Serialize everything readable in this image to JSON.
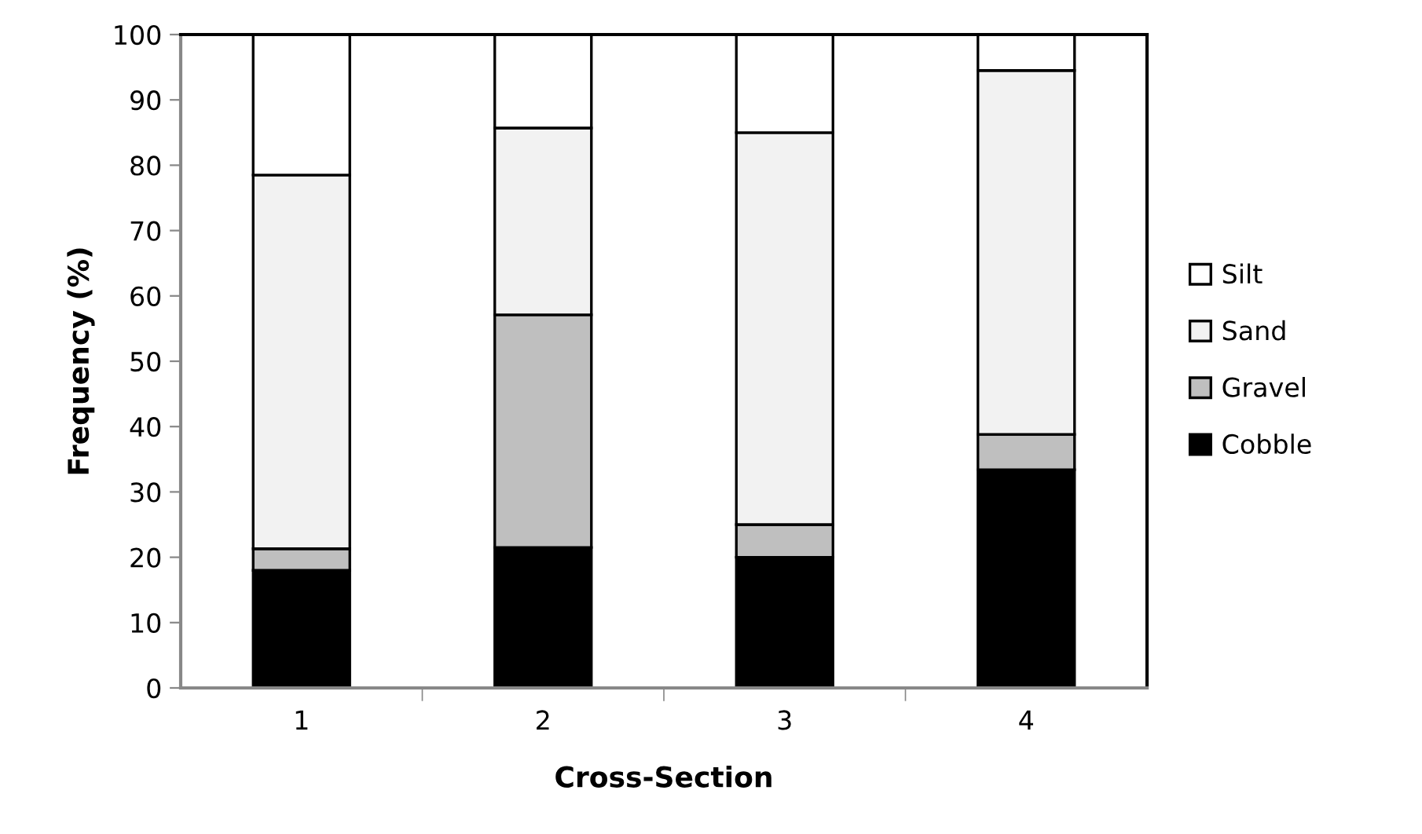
{
  "chart_data": {
    "type": "bar",
    "stacked": true,
    "xlabel": "Cross-Section",
    "ylabel": "Frequency (%)",
    "categories": [
      "1",
      "2",
      "3",
      "4"
    ],
    "series": [
      {
        "name": "Cobble",
        "color": "#000000",
        "values": [
          18.0,
          21.5,
          20.0,
          33.4
        ]
      },
      {
        "name": "Gravel",
        "color": "#bfbfbf",
        "values": [
          3.3,
          35.6,
          5.0,
          5.4
        ]
      },
      {
        "name": "Sand",
        "color": "#f2f2f2",
        "values": [
          57.2,
          28.6,
          60.0,
          55.7
        ]
      },
      {
        "name": "Silt",
        "color": "#ffffff",
        "values": [
          21.5,
          14.3,
          15.0,
          5.5
        ]
      }
    ],
    "ylim": [
      0,
      100
    ],
    "yticks": [
      0,
      10,
      20,
      30,
      40,
      50,
      60,
      70,
      80,
      90,
      100
    ],
    "grid": false,
    "legend": "right"
  }
}
